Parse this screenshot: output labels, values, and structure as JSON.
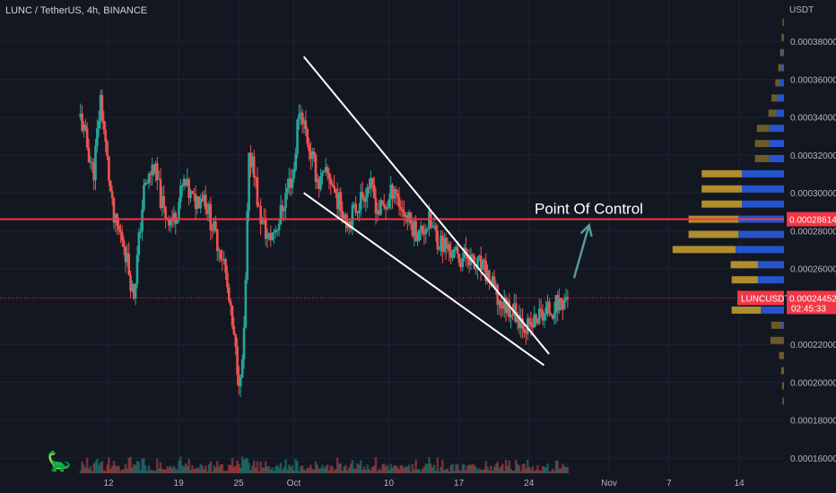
{
  "header": {
    "symbol": "LUNC / TetherUS, 4h, BINANCE",
    "currency": "USDT"
  },
  "colors": {
    "background": "#131722",
    "up_candle": "#26a69a",
    "down_candle": "#ef5350",
    "poc_line": "#f23645",
    "wedge_lines": "#ffffff",
    "arrow": "#5b9c96",
    "vp_gold": "#b8932e",
    "vp_blue": "#2757d6"
  },
  "annotation": {
    "poc_label": "Point Of Control"
  },
  "price_tags": {
    "poc_value": "0.00028614",
    "last_symbol": "LUNCUSDT",
    "last_value": "0.00024452",
    "countdown": "02:45:33"
  },
  "chart_data": {
    "type": "candlestick",
    "title": "LUNC / TetherUS, 4h, BINANCE",
    "y_unit": "USDT",
    "ylim": [
      0.000151,
      0.0004
    ],
    "y_ticks": [
      "0.00038000",
      "0.00036000",
      "0.00034000",
      "0.00032000",
      "0.00030000",
      "0.00028000",
      "0.00026000",
      "0.00022000",
      "0.00020000",
      "0.00018000",
      "0.00016000"
    ],
    "x_ticks": [
      "12",
      "19",
      "25",
      "Oct",
      "10",
      "17",
      "24",
      "Nov",
      "7",
      "14"
    ],
    "x_tick_days": [
      0,
      7,
      13,
      18.5,
      28,
      35,
      42,
      50,
      56,
      63
    ],
    "xlim_days": [
      -4.5,
      70
    ],
    "grid": true,
    "poc_price": 0.00028614,
    "last_price": 0.00024452,
    "close_path": [
      [
        -2.8,
        0.00034
      ],
      [
        -1.5,
        0.00031
      ],
      [
        -0.8,
        0.00035
      ],
      [
        0,
        0.00031
      ],
      [
        0.5,
        0.000285
      ],
      [
        1.5,
        0.000275
      ],
      [
        2.5,
        0.000245
      ],
      [
        3.5,
        0.0003
      ],
      [
        4.5,
        0.000315
      ],
      [
        5.5,
        0.00029
      ],
      [
        6.5,
        0.000285
      ],
      [
        7.5,
        0.000305
      ],
      [
        8.5,
        0.000295
      ],
      [
        9.5,
        0.0003
      ],
      [
        10.5,
        0.00028
      ],
      [
        11.5,
        0.000265
      ],
      [
        12.2,
        0.000235
      ],
      [
        12.7,
        0.000215
      ],
      [
        13.2,
        0.000198
      ],
      [
        13.6,
        0.00023
      ],
      [
        14,
        0.000315
      ],
      [
        14.4,
        0.00032
      ],
      [
        15,
        0.00029
      ],
      [
        16,
        0.000275
      ],
      [
        17,
        0.000285
      ],
      [
        17.5,
        0.000295
      ],
      [
        18,
        0.000305
      ],
      [
        18.5,
        0.00031
      ],
      [
        19,
        0.000345
      ],
      [
        19.4,
        0.00034
      ],
      [
        20,
        0.000325
      ],
      [
        21,
        0.000305
      ],
      [
        22,
        0.00031
      ],
      [
        23,
        0.000295
      ],
      [
        24,
        0.000285
      ],
      [
        25,
        0.000295
      ],
      [
        26,
        0.000305
      ],
      [
        27,
        0.00029
      ],
      [
        28,
        0.000295
      ],
      [
        28.5,
        0.000305
      ],
      [
        29,
        0.000295
      ],
      [
        30,
        0.000285
      ],
      [
        31,
        0.000278
      ],
      [
        32,
        0.000285
      ],
      [
        33,
        0.000275
      ],
      [
        34,
        0.00027
      ],
      [
        35,
        0.000265
      ],
      [
        36,
        0.000268
      ],
      [
        36.5,
        0.00026
      ],
      [
        37,
        0.000262
      ],
      [
        38,
        0.000255
      ],
      [
        39,
        0.000242
      ],
      [
        40,
        0.00024
      ],
      [
        41,
        0.000235
      ],
      [
        42,
        0.000228
      ],
      [
        43,
        0.000235
      ],
      [
        44,
        0.000238
      ],
      [
        45,
        0.000242
      ],
      [
        46,
        0.000245
      ]
    ],
    "annotations": [
      {
        "type": "falling_wedge_upper",
        "points": [
          [
            19.5,
            0.000372
          ],
          [
            44,
            0.000215
          ]
        ]
      },
      {
        "type": "falling_wedge_lower",
        "points": [
          [
            19.5,
            0.0003
          ],
          [
            43.5,
            0.000209
          ]
        ]
      },
      {
        "type": "arrow",
        "points": [
          [
            46.5,
            0.000255
          ],
          [
            48,
            0.000283
          ]
        ]
      },
      {
        "type": "label",
        "text": "Point Of Control"
      }
    ],
    "volume_profile": {
      "bin_size": 4e-06,
      "rows": [
        {
          "price_low": 0.000188,
          "gold": 0.3,
          "blue": 0
        },
        {
          "price_low": 0.000196,
          "gold": 0.4,
          "blue": 0
        },
        {
          "price_low": 0.000204,
          "gold": 0.6,
          "blue": 0
        },
        {
          "price_low": 0.000212,
          "gold": 1.0,
          "blue": 0
        },
        {
          "price_low": 0.00022,
          "gold": 2.6,
          "blue": 0.2
        },
        {
          "price_low": 0.000228,
          "gold": 2.2,
          "blue": 0.4
        },
        {
          "price_low": 0.000236,
          "gold": 6.0,
          "blue": 4.8
        },
        {
          "price_low": 0.000244,
          "gold": 3.2,
          "blue": 3.4
        },
        {
          "price_low": 0.000252,
          "gold": 5.4,
          "blue": 5.4
        },
        {
          "price_low": 0.00026,
          "gold": 5.6,
          "blue": 5.4
        },
        {
          "price_low": 0.000268,
          "gold": 13.0,
          "blue": 10.0
        },
        {
          "price_low": 0.000276,
          "gold": 10.3,
          "blue": 9.4
        },
        {
          "price_low": 0.000284,
          "gold": 10.3,
          "blue": 9.4
        },
        {
          "price_low": 0.000292,
          "gold": 8.3,
          "blue": 8.7
        },
        {
          "price_low": 0.0003,
          "gold": 8.3,
          "blue": 8.7
        },
        {
          "price_low": 0.000308,
          "gold": 8.3,
          "blue": 8.7
        },
        {
          "price_low": 0.000316,
          "gold": 3.0,
          "blue": 3.0
        },
        {
          "price_low": 0.000324,
          "gold": 3.0,
          "blue": 3.0
        },
        {
          "price_low": 0.000332,
          "gold": 2.6,
          "blue": 3.0
        },
        {
          "price_low": 0.00034,
          "gold": 1.6,
          "blue": 1.6
        },
        {
          "price_low": 0.000348,
          "gold": 1.3,
          "blue": 1.3
        },
        {
          "price_low": 0.000356,
          "gold": 0.9,
          "blue": 0.9
        },
        {
          "price_low": 0.000364,
          "gold": 0.7,
          "blue": 0.5
        },
        {
          "price_low": 0.000372,
          "gold": 0.5,
          "blue": 0.3
        },
        {
          "price_low": 0.00038,
          "gold": 0.3,
          "blue": 0.2
        },
        {
          "price_low": 0.000388,
          "gold": 0.2,
          "blue": 0.1
        }
      ]
    }
  }
}
